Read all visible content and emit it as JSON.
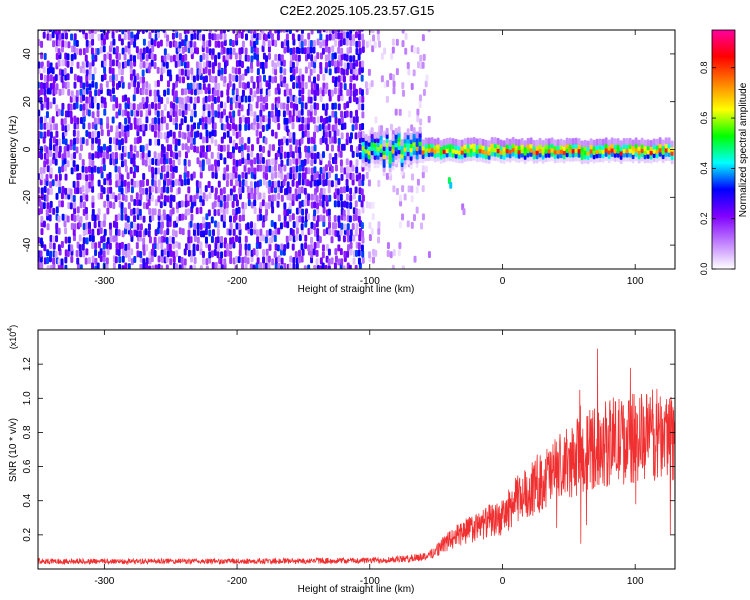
{
  "title": "C2E2.2025.105.23.57.G15",
  "chart_data": [
    {
      "type": "heatmap",
      "id": "spectrogram",
      "xlabel": "Height of straight line (km)",
      "ylabel": "Frequency (Hz)",
      "xlim": [
        -350,
        130
      ],
      "ylim": [
        -50,
        50
      ],
      "xticks": [
        -300,
        -200,
        -100,
        0,
        100
      ],
      "xtick_labels": [
        "-300",
        "-200",
        "-100",
        "0",
        "100"
      ],
      "yticks": [
        -40,
        -20,
        0,
        20,
        40
      ],
      "ytick_labels": [
        "-40",
        "-20",
        "0",
        "20",
        "40"
      ],
      "noise_regions": [
        {
          "x_from": -350,
          "x_to": -105,
          "density": "dense",
          "amplitude_range": [
            0.05,
            0.35
          ]
        },
        {
          "x_from": -105,
          "x_to": -55,
          "density": "sparse",
          "amplitude_range": [
            0.02,
            0.12
          ]
        }
      ],
      "signal_band": {
        "center_frequency": 0,
        "x_from": -105,
        "x_to": 130,
        "width_hz": 8,
        "peak_amplitude": 0.95
      },
      "secondary_trace": [
        {
          "x": -40,
          "y": -13
        },
        {
          "x": -30,
          "y": -24
        }
      ],
      "colorbar": {
        "label": "Normalized spectral amplitude",
        "range": [
          0.0,
          0.95
        ],
        "ticks": [
          0.0,
          0.2,
          0.4,
          0.6,
          0.8
        ],
        "tick_labels": [
          "0.0",
          "0.2",
          "0.4",
          "0.6",
          "0.8"
        ],
        "colors": [
          "#ffffff",
          "#c080ff",
          "#8000ff",
          "#0000ff",
          "#00ffff",
          "#00ff00",
          "#ffff00",
          "#ff8000",
          "#ff0000",
          "#ff00a0"
        ]
      }
    },
    {
      "type": "line",
      "id": "snr",
      "xlabel": "Height of straight line (km)",
      "ylabel": "SNR (10 * v/v)",
      "y_multiplier_label": "(x10",
      "y_multiplier_exp": "4",
      "y_multiplier_close": ")",
      "xlim": [
        -350,
        130
      ],
      "ylim": [
        0,
        1.4
      ],
      "xticks": [
        -300,
        -200,
        -100,
        0,
        100
      ],
      "xtick_labels": [
        "-300",
        "-200",
        "-100",
        "0",
        "100"
      ],
      "yticks": [
        0.2,
        0.4,
        0.6,
        0.8,
        1.0,
        1.2
      ],
      "ytick_labels": [
        "0.2",
        "0.4",
        "0.6",
        "0.8",
        "1.0",
        "1.2"
      ],
      "line_color": "#f03030",
      "envelope_x": [
        -350,
        -300,
        -200,
        -100,
        -70,
        -55,
        -45,
        -30,
        -20,
        -10,
        0,
        10,
        30,
        50,
        70,
        90,
        110,
        130
      ],
      "envelope_y": [
        0.045,
        0.045,
        0.045,
        0.05,
        0.06,
        0.08,
        0.14,
        0.22,
        0.24,
        0.28,
        0.3,
        0.4,
        0.52,
        0.62,
        0.72,
        0.75,
        0.78,
        0.8
      ],
      "jitter_fraction": 0.35,
      "max_value": 1.38
    }
  ]
}
